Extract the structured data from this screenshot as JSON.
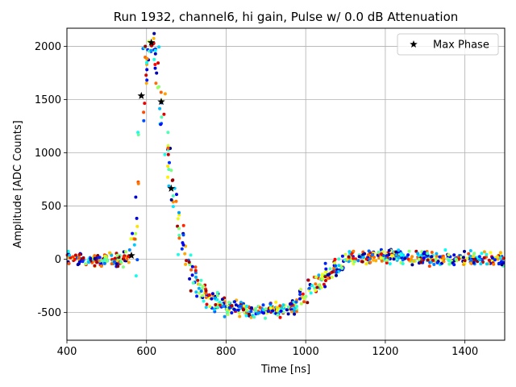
{
  "chart_data": {
    "type": "scatter",
    "title": "Run 1932, channel6, hi gain, Pulse w/ 0.0 dB Attenuation",
    "xlabel": "Time [ns]",
    "ylabel": "Amplitude [ADC Counts]",
    "xlim": [
      400,
      1500
    ],
    "ylim": [
      -760,
      2170
    ],
    "xticks": [
      400,
      600,
      800,
      1000,
      1200,
      1400
    ],
    "yticks": [
      -500,
      0,
      500,
      1000,
      1500,
      2000
    ],
    "grid": true,
    "legend_position": "top-right",
    "colormap": "jet",
    "series": [
      {
        "name": "Max Phase",
        "marker": "star",
        "color": "#000000",
        "points": [
          [
            562,
            35
          ],
          [
            587,
            1535
          ],
          [
            612,
            2035
          ],
          [
            637,
            1480
          ],
          [
            662,
            665
          ]
        ]
      }
    ],
    "pulse_envelope": [
      [
        400,
        0
      ],
      [
        540,
        0
      ],
      [
        560,
        30
      ],
      [
        575,
        400
      ],
      [
        590,
        1500
      ],
      [
        605,
        1950
      ],
      [
        615,
        2010
      ],
      [
        630,
        1700
      ],
      [
        645,
        1300
      ],
      [
        660,
        800
      ],
      [
        680,
        300
      ],
      [
        700,
        30
      ],
      [
        720,
        -180
      ],
      [
        750,
        -350
      ],
      [
        800,
        -450
      ],
      [
        870,
        -480
      ],
      [
        930,
        -480
      ],
      [
        970,
        -450
      ],
      [
        1000,
        -330
      ],
      [
        1040,
        -180
      ],
      [
        1080,
        -60
      ],
      [
        1120,
        10
      ],
      [
        1200,
        20
      ],
      [
        1300,
        10
      ],
      [
        1400,
        10
      ],
      [
        1500,
        0
      ]
    ]
  }
}
